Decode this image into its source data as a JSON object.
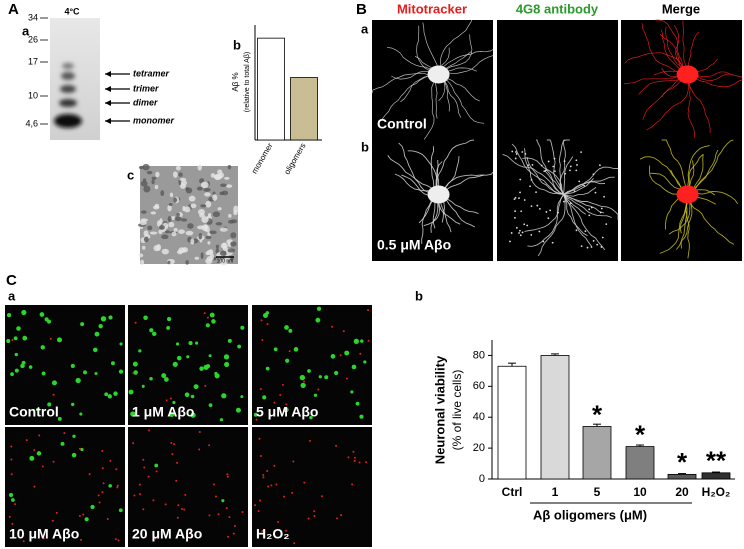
{
  "panel_A": {
    "label": "A",
    "a": {
      "label": "a",
      "condition": "4°C",
      "size_markers": [
        "34",
        "26",
        "17",
        "10",
        "4,6"
      ],
      "bands": [
        "tetramer",
        "trimer",
        "dimer",
        "monomer"
      ]
    },
    "b": {
      "label": "b"
    },
    "c": {
      "label": "c",
      "scale_bar": "100 nm"
    }
  },
  "panel_B": {
    "label": "B",
    "columns": [
      "Mitotracker",
      "4G8 antibody",
      "Merge"
    ],
    "rows": [
      {
        "label": "a",
        "condition": "Control"
      },
      {
        "label": "b",
        "condition": "0.5 μM  Aβo"
      }
    ]
  },
  "panel_C": {
    "label": "C",
    "a": {
      "label": "a",
      "conditions": [
        "Control",
        "1 μM  Aβo",
        "5 μM  Aβo",
        "10 μM  Aβo",
        "20 μM Aβo",
        "H₂O₂"
      ]
    },
    "b": {
      "label": "b"
    }
  },
  "chart_data": [
    {
      "type": "bar",
      "ylabel": [
        "Aβ %",
        "(relative to total Aβ)"
      ],
      "categories": [
        "monomer",
        "oligomers"
      ],
      "values": [
        62,
        38
      ],
      "colors": [
        "#ffffff",
        "#c9bd94"
      ],
      "ylim": [
        0,
        70
      ]
    },
    {
      "type": "bar",
      "ylabel": [
        "Neuronal viability",
        "(% of live cells)"
      ],
      "xlabel": "Aβ oligomers (μM)",
      "categories": [
        "Ctrl",
        "1",
        "5",
        "10",
        "20",
        "H₂O₂"
      ],
      "values": [
        73,
        80,
        34,
        21,
        3,
        4
      ],
      "errors": [
        2,
        1,
        1.5,
        1,
        0.5,
        0.5
      ],
      "colors": [
        "#ffffff",
        "#d9d9d9",
        "#a6a6a6",
        "#7f7f7f",
        "#595959",
        "#303030"
      ],
      "significance": [
        null,
        null,
        "*",
        "*",
        "*",
        "**"
      ],
      "ylim": [
        0,
        90
      ],
      "yticks": [
        0,
        20,
        40,
        60,
        80
      ]
    }
  ]
}
